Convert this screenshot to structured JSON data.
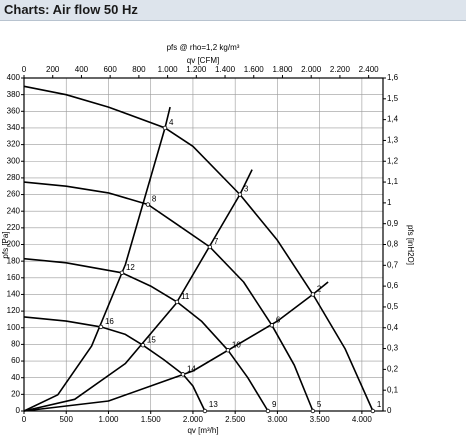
{
  "header": {
    "title": "Charts: Air flow 50 Hz"
  },
  "chart_data": {
    "type": "line",
    "title": "pfs @ rho=1,2 kg/m³",
    "xlabel": "qv [m³/h]",
    "x2label": "qv [CFM]",
    "ylabel": "pfs [Pa]",
    "y2label": "pfs [inH2O]",
    "xlim": [
      0,
      4250
    ],
    "xticks": [
      0,
      500,
      {
        "value": 1000,
        "label": "1.000"
      },
      {
        "value": 1500,
        "label": "1.500"
      },
      {
        "value": 2000,
        "label": "2.000"
      },
      {
        "value": 2500,
        "label": "2.500"
      },
      {
        "value": 3000,
        "label": "3.000"
      },
      {
        "value": 3500,
        "label": "3.500"
      },
      {
        "value": 4000,
        "label": "4.000"
      }
    ],
    "x2lim": [
      0,
      2500
    ],
    "x2ticks": [
      0,
      200,
      400,
      600,
      800,
      {
        "value": 1000,
        "label": "1.000"
      },
      {
        "value": 1200,
        "label": "1.200"
      },
      {
        "value": 1400,
        "label": "1.400"
      },
      {
        "value": 1600,
        "label": "1.600"
      },
      {
        "value": 1800,
        "label": "1.800"
      },
      {
        "value": 2000,
        "label": "2.000"
      },
      {
        "value": 2200,
        "label": "2.200"
      },
      {
        "value": 2400,
        "label": "2.400"
      }
    ],
    "ylim": [
      0,
      400
    ],
    "yticks": [
      0,
      20,
      40,
      60,
      80,
      100,
      120,
      140,
      160,
      180,
      200,
      220,
      240,
      260,
      280,
      300,
      320,
      340,
      360,
      380,
      400
    ],
    "y2lim": [
      0,
      1.6
    ],
    "y2ticks": [
      0,
      {
        "value": 0.1,
        "label": "0,1"
      },
      {
        "value": 0.2,
        "label": "0,2"
      },
      {
        "value": 0.3,
        "label": "0,3"
      },
      {
        "value": 0.4,
        "label": "0,4"
      },
      {
        "value": 0.5,
        "label": "0,5"
      },
      {
        "value": 0.6,
        "label": "0,6"
      },
      {
        "value": 0.7,
        "label": "0,7"
      },
      {
        "value": 0.8,
        "label": "0,8"
      },
      {
        "value": 0.9,
        "label": "0,9"
      },
      1,
      {
        "value": 1.1,
        "label": "1,1"
      },
      {
        "value": 1.2,
        "label": "1,2"
      },
      {
        "value": 1.3,
        "label": "1,3"
      },
      {
        "value": 1.4,
        "label": "1,4"
      },
      {
        "value": 1.5,
        "label": "1,5"
      },
      {
        "value": 1.6,
        "label": "1,6"
      }
    ],
    "grid": true,
    "series": [
      {
        "color": "#000000",
        "x": [
          0,
          500,
          1000,
          1669,
          2000,
          2556,
          3000,
          3420,
          3800,
          4130
        ],
        "values": [
          390,
          380,
          365,
          340,
          318,
          260,
          205,
          140,
          75,
          0
        ]
      },
      {
        "color": "#000000",
        "x": [
          0,
          500,
          1000,
          1467,
          1800,
          2201,
          2600,
          2935,
          3200,
          3420
        ],
        "values": [
          275,
          270,
          262,
          248,
          225,
          197,
          155,
          103,
          55,
          0
        ]
      },
      {
        "color": "#000000",
        "x": [
          0,
          500,
          1160,
          1500,
          1811,
          2100,
          2414,
          2650,
          2888
        ],
        "values": [
          183,
          178,
          166,
          150,
          131,
          108,
          73,
          40,
          0
        ]
      },
      {
        "color": "#000000",
        "x": [
          0,
          500,
          911,
          1200,
          1408,
          1650,
          1882,
          2000,
          2142
        ],
        "values": [
          113,
          108,
          101,
          92,
          79,
          62,
          44,
          30,
          0
        ]
      },
      {
        "color": "#000000",
        "x": [
          0,
          400,
          800,
          1200,
          1669,
          1730
        ],
        "values": [
          0,
          19.5,
          78,
          176,
          340,
          365
        ]
      },
      {
        "color": "#000000",
        "x": [
          0,
          600,
          1200,
          1800,
          2556,
          2700
        ],
        "values": [
          0,
          14,
          57,
          129,
          260,
          290
        ]
      },
      {
        "color": "#000000",
        "x": [
          0,
          1000,
          2000,
          3000,
          3420,
          3600
        ],
        "values": [
          0,
          12,
          48,
          108,
          140,
          155
        ]
      }
    ],
    "points": [
      {
        "label": "1",
        "x": 4130,
        "y": 0
      },
      {
        "label": "2",
        "x": 3420,
        "y": 140
      },
      {
        "label": "3",
        "x": 2556,
        "y": 260
      },
      {
        "label": "4",
        "x": 1669,
        "y": 340
      },
      {
        "label": "5",
        "x": 3420,
        "y": 0
      },
      {
        "label": "6",
        "x": 2935,
        "y": 103
      },
      {
        "label": "7",
        "x": 2201,
        "y": 197
      },
      {
        "label": "8",
        "x": 1467,
        "y": 248
      },
      {
        "label": "9",
        "x": 2888,
        "y": 0
      },
      {
        "label": "10",
        "x": 2414,
        "y": 73
      },
      {
        "label": "11",
        "x": 1811,
        "y": 131
      },
      {
        "label": "12",
        "x": 1160,
        "y": 166
      },
      {
        "label": "13",
        "x": 2142,
        "y": 0
      },
      {
        "label": "14",
        "x": 1882,
        "y": 44
      },
      {
        "label": "15",
        "x": 1408,
        "y": 79
      },
      {
        "label": "16",
        "x": 911,
        "y": 101
      }
    ]
  }
}
